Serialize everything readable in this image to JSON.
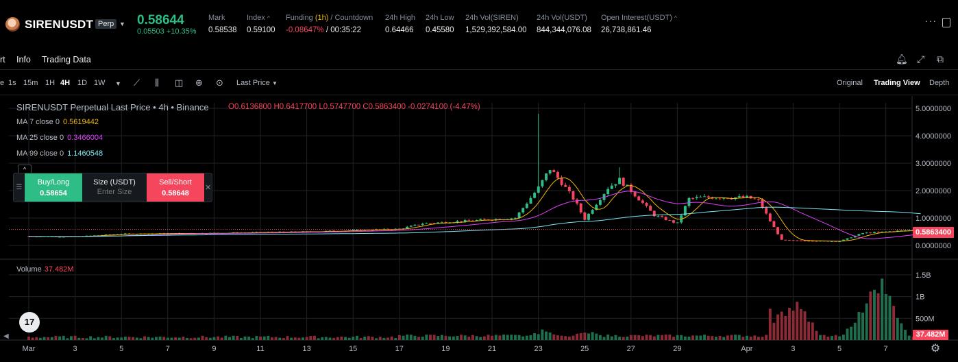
{
  "ticker": {
    "symbol": "SIRENUSDT",
    "badge": "Perp",
    "last_price": "0.58644",
    "change": "0.05503 +10.35%",
    "stats": [
      {
        "label": "Mark",
        "value": "0.58538"
      },
      {
        "label": "Index",
        "value": "0.59100"
      },
      {
        "label_pre": "Funding ",
        "label_hl": "(1h)",
        "label_post": " / Countdown",
        "value_red": "-0.08647%",
        "value": " / 00:35:22"
      },
      {
        "label": "24h High",
        "value": "0.64466"
      },
      {
        "label": "24h Low",
        "value": "0.45580"
      },
      {
        "label": "24h Vol(SIREN)",
        "value": "1,529,392,584.00"
      },
      {
        "label": "24h Vol(USDT)",
        "value": "844,344,076.08"
      },
      {
        "label": "Open Interest(USDT)",
        "value": "26,738,861.46"
      }
    ],
    "colors": {
      "up": "#2ebd85",
      "down": "#f6465d",
      "accent": "#f0b90b"
    }
  },
  "tabs": {
    "items": [
      "rt",
      "Info",
      "Trading Data"
    ]
  },
  "toolbar": {
    "intervals": [
      "e",
      "1s",
      "15m",
      "1H",
      "4H",
      "1D",
      "1W"
    ],
    "active_interval": "4H",
    "price_type": "Last Price",
    "views": [
      "Original",
      "Trading View",
      "Depth"
    ],
    "active_view": "Trading View"
  },
  "chart": {
    "legend_title": "SIRENUSDT Perpetual Last Price • 4h • Binance",
    "ohlc": "O0.6136800 H0.6417700 L0.5747700 C0.5863400 -0.0274100 (-4.47%)",
    "ma": [
      {
        "label": "MA 7 close 0",
        "value": "0.5619442",
        "color": "#f0b90b"
      },
      {
        "label": "MA 25 close 0",
        "value": "0.3466004",
        "color": "#e040fb"
      },
      {
        "label": "MA 99 close 0",
        "value": "1.1460548",
        "color": "#7ee8f5"
      }
    ],
    "current_price_tag": "0.5863400",
    "volume_label": "Volume",
    "volume_value": "37.482M",
    "volume_tag": "37.482M"
  },
  "trade_widget": {
    "buy_label": "Buy/Long",
    "buy_price": "0.58654",
    "size_label": "Size (USDT)",
    "size_placeholder": "Enter Size",
    "sell_label": "Sell/Short",
    "sell_price": "0.58648"
  },
  "chart_data": {
    "type": "candlestick",
    "price_axis": {
      "ticks": [
        "5.0000000",
        "4.0000000",
        "3.0000000",
        "2.0000000",
        "1.0000000",
        "0.0000000"
      ],
      "tick_values": [
        5,
        4,
        3,
        2,
        1,
        0
      ],
      "range": [
        -0.3,
        5.2
      ]
    },
    "volume_axis": {
      "ticks": [
        "1.5B",
        "1B",
        "500M"
      ],
      "tick_values": [
        1500,
        1000,
        500
      ],
      "range": [
        0,
        1750
      ],
      "unit": "M"
    },
    "time_axis": {
      "ticks": [
        "Mar",
        "3",
        "5",
        "7",
        "9",
        "11",
        "13",
        "15",
        "17",
        "19",
        "21",
        "23",
        "25",
        "27",
        "29",
        "Apr",
        "3",
        "5",
        "7"
      ],
      "tick_days": [
        0,
        2,
        4,
        6,
        8,
        10,
        12,
        14,
        16,
        18,
        20,
        22,
        24,
        26,
        28,
        31,
        33,
        35,
        37
      ]
    },
    "current_price": 0.58634,
    "anchors": [
      {
        "day": 0,
        "price": 0.33
      },
      {
        "day": 2,
        "price": 0.32
      },
      {
        "day": 4,
        "price": 0.42
      },
      {
        "day": 8,
        "price": 0.45
      },
      {
        "day": 12,
        "price": 0.5
      },
      {
        "day": 16,
        "price": 0.6
      },
      {
        "day": 17,
        "price": 0.8
      },
      {
        "day": 19,
        "price": 0.9
      },
      {
        "day": 21,
        "price": 1.0
      },
      {
        "day": 22,
        "price": 2.1
      },
      {
        "day": 22.5,
        "price": 2.8
      },
      {
        "day": 23,
        "price": 2.3
      },
      {
        "day": 23.6,
        "price": 1.6
      },
      {
        "day": 24,
        "price": 0.95
      },
      {
        "day": 25,
        "price": 2.1
      },
      {
        "day": 25.5,
        "price": 2.4
      },
      {
        "day": 26,
        "price": 2.0
      },
      {
        "day": 27,
        "price": 1.1
      },
      {
        "day": 28,
        "price": 0.8
      },
      {
        "day": 28.5,
        "price": 1.7
      },
      {
        "day": 29,
        "price": 1.75
      },
      {
        "day": 31,
        "price": 1.75
      },
      {
        "day": 31.5,
        "price": 1.65
      },
      {
        "day": 32,
        "price": 0.9
      },
      {
        "day": 32.5,
        "price": 0.2
      },
      {
        "day": 33,
        "price": 0.18
      },
      {
        "day": 35,
        "price": 0.15
      },
      {
        "day": 36,
        "price": 0.45
      },
      {
        "day": 38.6,
        "price": 0.59
      }
    ],
    "volume_peaks": [
      {
        "day": 33.2,
        "value": 1000
      },
      {
        "day": 36.2,
        "value": 950
      },
      {
        "day": 36.7,
        "value": 1700
      },
      {
        "day": 37.0,
        "value": 1000
      },
      {
        "day": 22.3,
        "value": 300
      },
      {
        "day": 24.1,
        "value": 230
      }
    ],
    "series": [
      {
        "name": "MA 7",
        "color": "#f0b90b"
      },
      {
        "name": "MA 25",
        "color": "#e040fb"
      },
      {
        "name": "MA 99",
        "color": "#7ee8f5"
      }
    ]
  }
}
